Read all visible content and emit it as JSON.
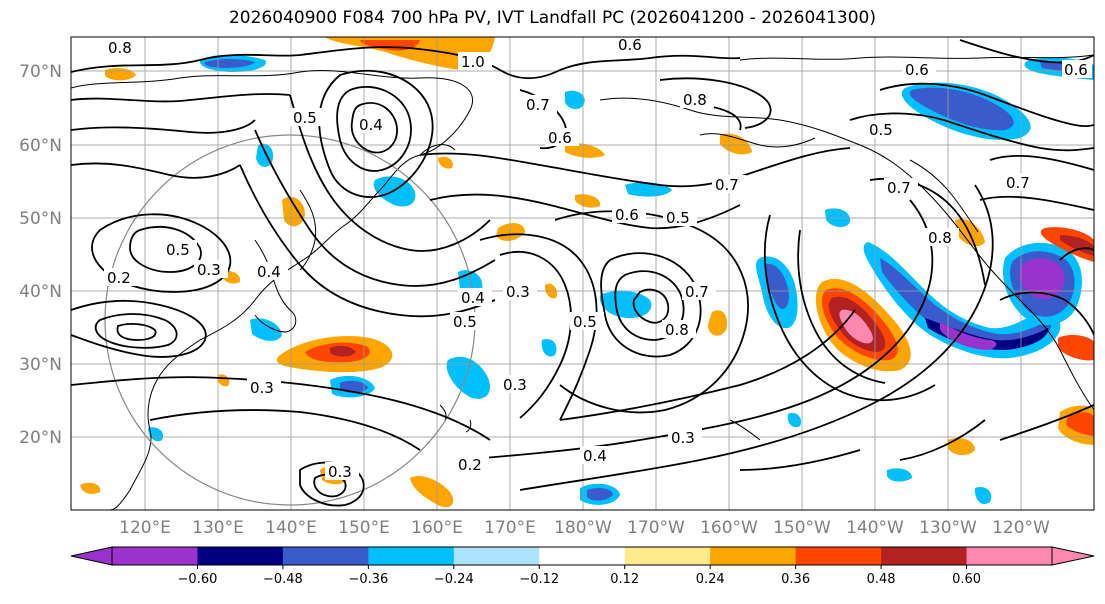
{
  "title": "2026040900 F084 700 hPa PV, IVT Landfall PC (2026041200 - 2026041300)",
  "map": {
    "lat_labels": [
      "70°N",
      "60°N",
      "50°N",
      "40°N",
      "30°N",
      "20°N"
    ],
    "lon_labels": [
      "120°E",
      "130°E",
      "140°E",
      "150°E",
      "160°E",
      "170°E",
      "180°W",
      "170°W",
      "160°W",
      "150°W",
      "140°W",
      "130°W",
      "120°W"
    ],
    "contour_labels": [
      "0.8",
      "0.6",
      "1.0",
      "0.6",
      "0.5",
      "0.4",
      "0.7",
      "0.6",
      "0.8",
      "0.5",
      "0.6",
      "0.7",
      "0.5",
      "0.7",
      "0.2",
      "0.3",
      "0.5",
      "0.4",
      "0.4",
      "0.5",
      "0.3",
      "0.5",
      "0.8",
      "0.7",
      "0.3",
      "0.3",
      "0.4",
      "0.2",
      "0.3",
      "0.8",
      "0.7",
      "0.6",
      "0.3"
    ]
  },
  "colorbar": {
    "colors": [
      "#9a32cd",
      "#000080",
      "#3a5bcc",
      "#00bfff",
      "#aee3ff",
      "#ffffff",
      "#ffeb8c",
      "#ffa500",
      "#ff4500",
      "#b22222",
      "#ff88b0"
    ],
    "over_color": "#ff88b0",
    "under_color": "#9a32cd",
    "tick_labels": [
      "−0.60",
      "−0.48",
      "−0.36",
      "−0.24",
      "−0.12",
      "0.12",
      "0.24",
      "0.36",
      "0.48",
      "0.60"
    ]
  }
}
